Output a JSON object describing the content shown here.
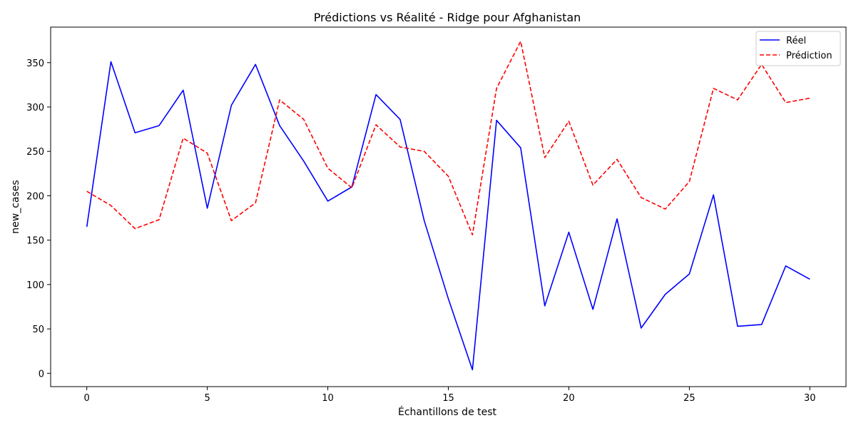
{
  "chart_data": {
    "type": "line",
    "title": "Prédictions vs Réalité - Ridge pour Afghanistan",
    "xlabel": "Échantillons de test",
    "ylabel": "new_cases",
    "xlim": [
      -1.5,
      31.5
    ],
    "ylim": [
      -15,
      390
    ],
    "x_ticks": [
      0,
      5,
      10,
      15,
      20,
      25,
      30
    ],
    "y_ticks": [
      0,
      50,
      100,
      150,
      200,
      250,
      300,
      350
    ],
    "grid": false,
    "legend_position": "top-right",
    "x": [
      0,
      1,
      2,
      3,
      4,
      5,
      6,
      7,
      8,
      9,
      10,
      11,
      12,
      13,
      14,
      15,
      16,
      17,
      18,
      19,
      20,
      21,
      22,
      23,
      24,
      25,
      26,
      27,
      28,
      29,
      30
    ],
    "series": [
      {
        "name": "Réel",
        "color": "#0000ff",
        "style": "solid",
        "values": [
          165,
          351,
          271,
          279,
          319,
          186,
          302,
          348,
          279,
          239,
          194,
          210,
          314,
          286,
          172,
          84,
          4,
          285,
          254,
          76,
          159,
          72,
          174,
          51,
          89,
          112,
          201,
          53,
          55,
          121,
          106
        ]
      },
      {
        "name": "Prédiction",
        "color": "#ff0000",
        "style": "dashed",
        "values": [
          205,
          189,
          163,
          173,
          265,
          248,
          172,
          192,
          308,
          286,
          231,
          209,
          280,
          255,
          250,
          222,
          156,
          321,
          374,
          243,
          284,
          212,
          241,
          198,
          185,
          216,
          321,
          308,
          348,
          305,
          310
        ]
      }
    ]
  }
}
